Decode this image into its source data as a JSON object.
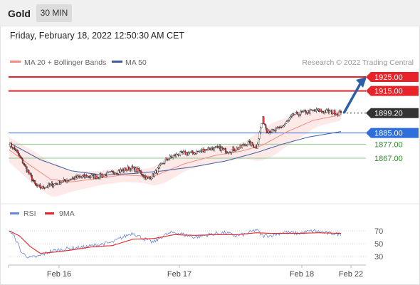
{
  "header": {
    "instrument": "Gold",
    "interval": "30 MIN"
  },
  "timestamp": "Friday, February 18, 2022 12:50:30 AM CET",
  "legend": {
    "items": [
      {
        "label": "MA 20 + Bollinger Bands",
        "color": "#f28b82"
      },
      {
        "label": "MA 50",
        "color": "#3c5d9e"
      }
    ],
    "copyright": "Research © 2022 Trading Central"
  },
  "rsi_legend": {
    "items": [
      {
        "label": "RSI",
        "color": "#6a86d6"
      },
      {
        "label": "9MA",
        "color": "#e8232a"
      }
    ]
  },
  "chart_data": [
    {
      "type": "candlestick",
      "instrument": "Gold",
      "interval": "30 MIN",
      "x_labels": [
        "Feb 16",
        "Feb 17",
        "Feb 18",
        "Feb 22"
      ],
      "levels": [
        {
          "label": "1925.00",
          "value": 1925.0,
          "style": "resistance",
          "color": "#e8232a"
        },
        {
          "label": "1915.00",
          "value": 1915.0,
          "style": "resistance",
          "color": "#e8232a"
        },
        {
          "label": "1899.20",
          "value": 1899.2,
          "style": "last-price",
          "color": "#333333"
        },
        {
          "label": "1885.00",
          "value": 1885.0,
          "style": "pivot",
          "color": "#2f6fdb"
        },
        {
          "label": "1877.00",
          "value": 1877.0,
          "style": "support",
          "color": "#2e8b2e"
        },
        {
          "label": "1867.00",
          "value": 1867.0,
          "style": "support",
          "color": "#2e8b2e"
        }
      ],
      "forecast_arrow": {
        "from": 1899.2,
        "to": 1925.0,
        "direction": "up",
        "color": "#2b5fa8"
      },
      "series_anchors": {
        "close": [
          [
            0,
            1877
          ],
          [
            6,
            1873
          ],
          [
            14,
            1863
          ],
          [
            26,
            1847
          ],
          [
            32,
            1846
          ],
          [
            46,
            1849
          ],
          [
            58,
            1852
          ],
          [
            72,
            1854
          ],
          [
            86,
            1854
          ],
          [
            102,
            1857
          ],
          [
            118,
            1860
          ],
          [
            126,
            1858
          ],
          [
            134,
            1852
          ],
          [
            140,
            1855
          ],
          [
            152,
            1866
          ],
          [
            164,
            1870
          ],
          [
            180,
            1871
          ],
          [
            194,
            1874
          ],
          [
            204,
            1874
          ],
          [
            212,
            1872
          ],
          [
            222,
            1874
          ],
          [
            232,
            1878
          ],
          [
            240,
            1875
          ],
          [
            246,
            1895
          ],
          [
            250,
            1887
          ],
          [
            256,
            1886
          ],
          [
            266,
            1890
          ],
          [
            276,
            1898
          ],
          [
            288,
            1900
          ],
          [
            300,
            1901
          ],
          [
            312,
            1900
          ],
          [
            322,
            1899.2
          ]
        ],
        "ma20": [
          [
            0,
            1873
          ],
          [
            20,
            1862
          ],
          [
            40,
            1852
          ],
          [
            60,
            1850
          ],
          [
            80,
            1852
          ],
          [
            110,
            1855
          ],
          [
            140,
            1854
          ],
          [
            170,
            1863
          ],
          [
            200,
            1869
          ],
          [
            225,
            1872
          ],
          [
            245,
            1876
          ],
          [
            270,
            1886
          ],
          [
            295,
            1894
          ],
          [
            322,
            1898
          ]
        ],
        "ma50": [
          [
            0,
            1878
          ],
          [
            30,
            1866
          ],
          [
            60,
            1858
          ],
          [
            90,
            1855
          ],
          [
            120,
            1856
          ],
          [
            150,
            1858
          ],
          [
            180,
            1861
          ],
          [
            210,
            1865
          ],
          [
            240,
            1871
          ],
          [
            265,
            1877
          ],
          [
            290,
            1882
          ],
          [
            322,
            1886
          ]
        ],
        "band_half_width": [
          [
            0,
            9
          ],
          [
            25,
            12
          ],
          [
            45,
            12
          ],
          [
            60,
            7
          ],
          [
            90,
            5
          ],
          [
            130,
            5
          ],
          [
            150,
            8
          ],
          [
            175,
            5
          ],
          [
            200,
            5
          ],
          [
            230,
            6
          ],
          [
            240,
            10
          ],
          [
            255,
            12
          ],
          [
            280,
            9
          ],
          [
            300,
            5
          ],
          [
            322,
            4
          ]
        ]
      }
    },
    {
      "type": "line",
      "title": "RSI",
      "series": [
        {
          "name": "RSI",
          "color": "#6a86d6",
          "anchors": [
            [
              0,
              71
            ],
            [
              6,
              58
            ],
            [
              12,
              36
            ],
            [
              20,
              28
            ],
            [
              28,
              30
            ],
            [
              40,
              38
            ],
            [
              55,
              42
            ],
            [
              70,
              44
            ],
            [
              85,
              48
            ],
            [
              100,
              52
            ],
            [
              110,
              60
            ],
            [
              120,
              67
            ],
            [
              130,
              58
            ],
            [
              140,
              52
            ],
            [
              150,
              63
            ],
            [
              160,
              68
            ],
            [
              170,
              64
            ],
            [
              180,
              60
            ],
            [
              190,
              63
            ],
            [
              200,
              66
            ],
            [
              210,
              67
            ],
            [
              220,
              62
            ],
            [
              230,
              65
            ],
            [
              240,
              72
            ],
            [
              246,
              62
            ],
            [
              255,
              63
            ],
            [
              266,
              68
            ],
            [
              280,
              66
            ],
            [
              295,
              70
            ],
            [
              310,
              66
            ],
            [
              322,
              65
            ]
          ]
        },
        {
          "name": "9MA",
          "color": "#e8232a",
          "anchors": [
            [
              0,
              70
            ],
            [
              10,
              62
            ],
            [
              20,
              46
            ],
            [
              30,
              35
            ],
            [
              45,
              37
            ],
            [
              60,
              40
            ],
            [
              80,
              45
            ],
            [
              100,
              47
            ],
            [
              120,
              57
            ],
            [
              140,
              58
            ],
            [
              160,
              64
            ],
            [
              180,
              63
            ],
            [
              200,
              64
            ],
            [
              220,
              64
            ],
            [
              240,
              67
            ],
            [
              255,
              66
            ],
            [
              280,
              66
            ],
            [
              300,
              67
            ],
            [
              322,
              66
            ]
          ]
        }
      ],
      "y_ticks": [
        70,
        50,
        30
      ],
      "ylim": [
        10,
        85
      ]
    }
  ]
}
